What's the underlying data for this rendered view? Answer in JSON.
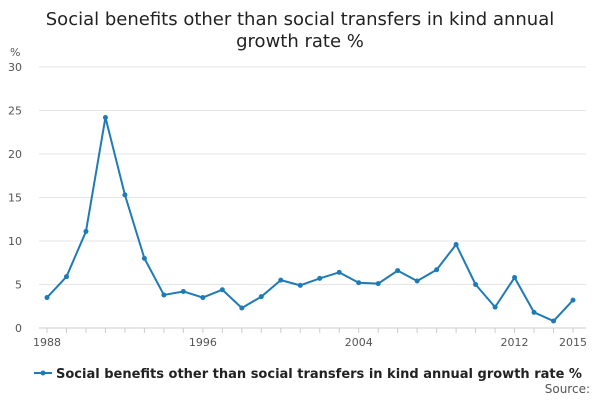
{
  "chart_data": {
    "type": "line",
    "title_lines": [
      "Social benefits other than social transfers in kind annual",
      "growth rate %"
    ],
    "ylabel": "%",
    "ylim": [
      0,
      30
    ],
    "yticks": [
      "0",
      "5",
      "10",
      "15",
      "20",
      "25",
      "30"
    ],
    "xlim": [
      1988,
      2015
    ],
    "x_tick_labels": [
      "1988",
      "1996",
      "2004",
      "2012",
      "2015"
    ],
    "grid": "horizontal",
    "legend_position": "bottom",
    "series": [
      {
        "name": "Social benefits other than social transfers in kind annual growth rate %",
        "color": "#1f7bb6",
        "x": [
          1988,
          1989,
          1990,
          1991,
          1992,
          1993,
          1994,
          1995,
          1996,
          1997,
          1998,
          1999,
          2000,
          2001,
          2002,
          2003,
          2004,
          2005,
          2006,
          2007,
          2008,
          2009,
          2010,
          2011,
          2012,
          2013,
          2014,
          2015
        ],
        "values": [
          3.5,
          5.9,
          11.1,
          24.2,
          15.3,
          8.0,
          3.8,
          4.2,
          3.5,
          4.4,
          2.3,
          3.6,
          5.5,
          4.9,
          5.7,
          6.4,
          5.2,
          5.1,
          6.6,
          5.4,
          6.7,
          9.6,
          5.0,
          2.4,
          5.8,
          1.8,
          0.8,
          3.2
        ]
      }
    ],
    "source_label": "Source:"
  }
}
